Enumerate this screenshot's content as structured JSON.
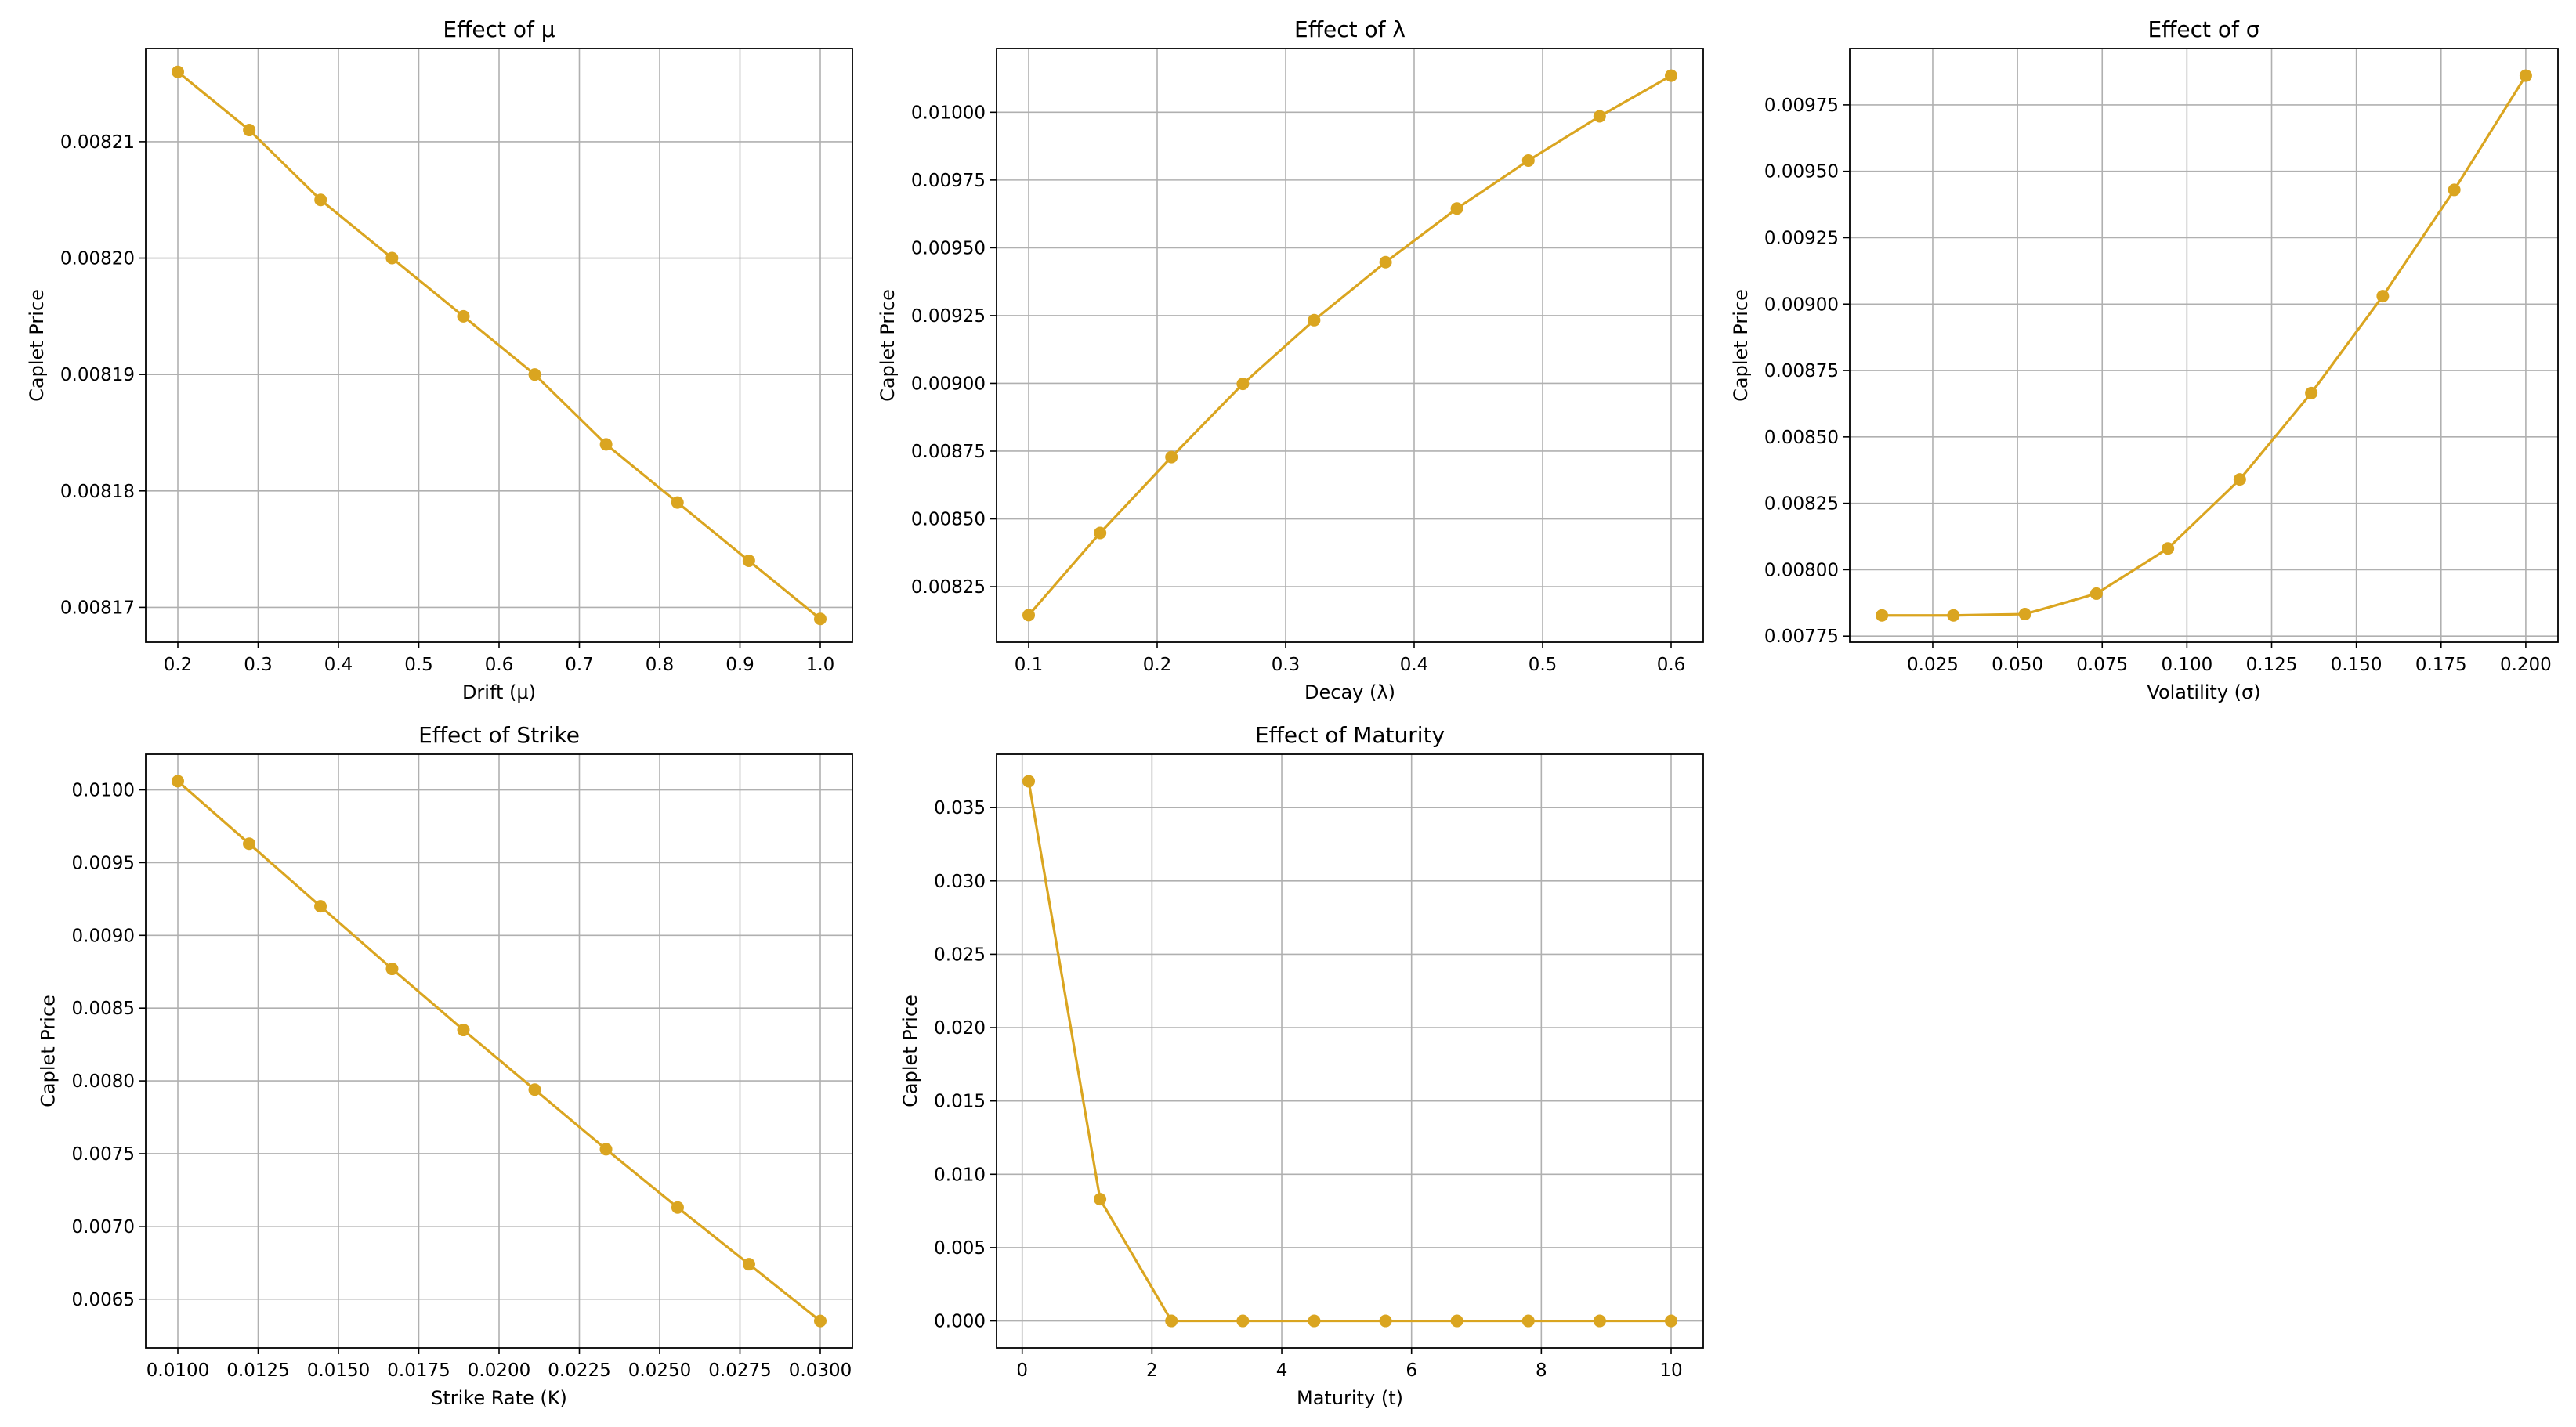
{
  "colors": {
    "line": "#DAA520",
    "grid": "#b0b0b0",
    "axes": "#000000",
    "background": "#ffffff"
  },
  "chart_data": [
    {
      "type": "line",
      "title": "Effect of μ",
      "xlabel": "Drift (μ)",
      "ylabel": "Caplet Price",
      "x": [
        0.2,
        0.2889,
        0.3778,
        0.4667,
        0.5556,
        0.6444,
        0.7333,
        0.8222,
        0.9111,
        1.0
      ],
      "series": [
        {
          "values": [
            0.008216,
            0.008211,
            0.008205,
            0.0082,
            0.008195,
            0.00819,
            0.008184,
            0.008179,
            0.008174,
            0.008169
          ]
        }
      ],
      "xlim": [
        0.16,
        1.04
      ],
      "ylim": [
        0.008167,
        0.008218
      ],
      "xticks": [
        0.2,
        0.3,
        0.4,
        0.5,
        0.6,
        0.7,
        0.8,
        0.9,
        1.0
      ],
      "xtick_labels": [
        "0.2",
        "0.3",
        "0.4",
        "0.5",
        "0.6",
        "0.7",
        "0.8",
        "0.9",
        "1.0"
      ],
      "yticks": [
        0.00817,
        0.00818,
        0.00819,
        0.0082,
        0.00821
      ],
      "ytick_labels": [
        "0.00817",
        "0.00818",
        "0.00819",
        "0.00820",
        "0.00821"
      ],
      "grid": true
    },
    {
      "type": "line",
      "title": "Effect of λ",
      "xlabel": "Decay (λ)",
      "ylabel": "Caplet Price",
      "x": [
        0.1,
        0.1556,
        0.2111,
        0.2667,
        0.3222,
        0.3778,
        0.4333,
        0.4889,
        0.5444,
        0.6
      ],
      "series": [
        {
          "values": [
            0.008145,
            0.008448,
            0.008728,
            0.008998,
            0.009233,
            0.009447,
            0.009645,
            0.009822,
            0.009985,
            0.010135
          ]
        }
      ],
      "xlim": [
        0.075,
        0.625
      ],
      "ylim": [
        0.008045,
        0.010235
      ],
      "xticks": [
        0.1,
        0.2,
        0.3,
        0.4,
        0.5,
        0.6
      ],
      "xtick_labels": [
        "0.1",
        "0.2",
        "0.3",
        "0.4",
        "0.5",
        "0.6"
      ],
      "yticks": [
        0.00825,
        0.0085,
        0.00875,
        0.009,
        0.00925,
        0.0095,
        0.00975,
        0.01
      ],
      "ytick_labels": [
        "0.00825",
        "0.00850",
        "0.00875",
        "0.00900",
        "0.00925",
        "0.00950",
        "0.00975",
        "0.01000"
      ],
      "grid": true
    },
    {
      "type": "line",
      "title": "Effect of σ",
      "xlabel": "Volatility (σ)",
      "ylabel": "Caplet Price",
      "x": [
        0.01,
        0.0311,
        0.0522,
        0.0733,
        0.0944,
        0.1156,
        0.1367,
        0.1578,
        0.1789,
        0.2
      ],
      "series": [
        {
          "values": [
            0.007828,
            0.007828,
            0.007833,
            0.00791,
            0.00808,
            0.00834,
            0.008665,
            0.00903,
            0.00943,
            0.00986
          ]
        }
      ],
      "xlim": [
        0.0005,
        0.2095
      ],
      "ylim": [
        0.007727,
        0.009962
      ],
      "xticks": [
        0.025,
        0.05,
        0.075,
        0.1,
        0.125,
        0.15,
        0.175,
        0.2
      ],
      "xtick_labels": [
        "0.025",
        "0.050",
        "0.075",
        "0.100",
        "0.125",
        "0.150",
        "0.175",
        "0.200"
      ],
      "yticks": [
        0.00775,
        0.008,
        0.00825,
        0.0085,
        0.00875,
        0.009,
        0.00925,
        0.0095,
        0.00975
      ],
      "ytick_labels": [
        "0.00775",
        "0.00800",
        "0.00825",
        "0.00850",
        "0.00875",
        "0.00900",
        "0.00925",
        "0.00950",
        "0.00975"
      ],
      "grid": true
    },
    {
      "type": "line",
      "title": "Effect of Strike",
      "xlabel": "Strike Rate (K)",
      "ylabel": "Caplet Price",
      "x": [
        0.01,
        0.01222,
        0.01444,
        0.01667,
        0.01889,
        0.02111,
        0.02333,
        0.02556,
        0.02778,
        0.03
      ],
      "series": [
        {
          "values": [
            0.01006,
            0.00963,
            0.0092,
            0.00877,
            0.00835,
            0.00794,
            0.00753,
            0.00713,
            0.00674,
            0.00635
          ]
        }
      ],
      "xlim": [
        0.009,
        0.031
      ],
      "ylim": [
        0.006165,
        0.010245
      ],
      "xticks": [
        0.01,
        0.0125,
        0.015,
        0.0175,
        0.02,
        0.0225,
        0.025,
        0.0275,
        0.03
      ],
      "xtick_labels": [
        "0.0100",
        "0.0125",
        "0.0150",
        "0.0175",
        "0.0200",
        "0.0225",
        "0.0250",
        "0.0275",
        "0.0300"
      ],
      "yticks": [
        0.0065,
        0.007,
        0.0075,
        0.008,
        0.0085,
        0.009,
        0.0095,
        0.01
      ],
      "ytick_labels": [
        "0.0065",
        "0.0070",
        "0.0075",
        "0.0080",
        "0.0085",
        "0.0090",
        "0.0095",
        "0.0100"
      ],
      "grid": true
    },
    {
      "type": "line",
      "title": "Effect of Maturity",
      "xlabel": "Maturity (t)",
      "ylabel": "Caplet Price",
      "x": [
        0.1,
        1.2,
        2.3,
        3.4,
        4.5,
        5.6,
        6.7,
        7.8,
        8.9,
        10.0
      ],
      "series": [
        {
          "values": [
            0.0368,
            0.0083,
            0.0,
            0.0,
            0.0,
            0.0,
            0.0,
            0.0,
            0.0,
            0.0
          ]
        }
      ],
      "xlim": [
        -0.395,
        10.495
      ],
      "ylim": [
        -0.00184,
        0.03864
      ],
      "xticks": [
        0,
        2,
        4,
        6,
        8,
        10
      ],
      "xtick_labels": [
        "0",
        "2",
        "4",
        "6",
        "8",
        "10"
      ],
      "yticks": [
        0.0,
        0.005,
        0.01,
        0.015,
        0.02,
        0.025,
        0.03,
        0.035
      ],
      "ytick_labels": [
        "0.000",
        "0.005",
        "0.010",
        "0.015",
        "0.020",
        "0.025",
        "0.030",
        "0.035"
      ],
      "grid": true
    }
  ]
}
